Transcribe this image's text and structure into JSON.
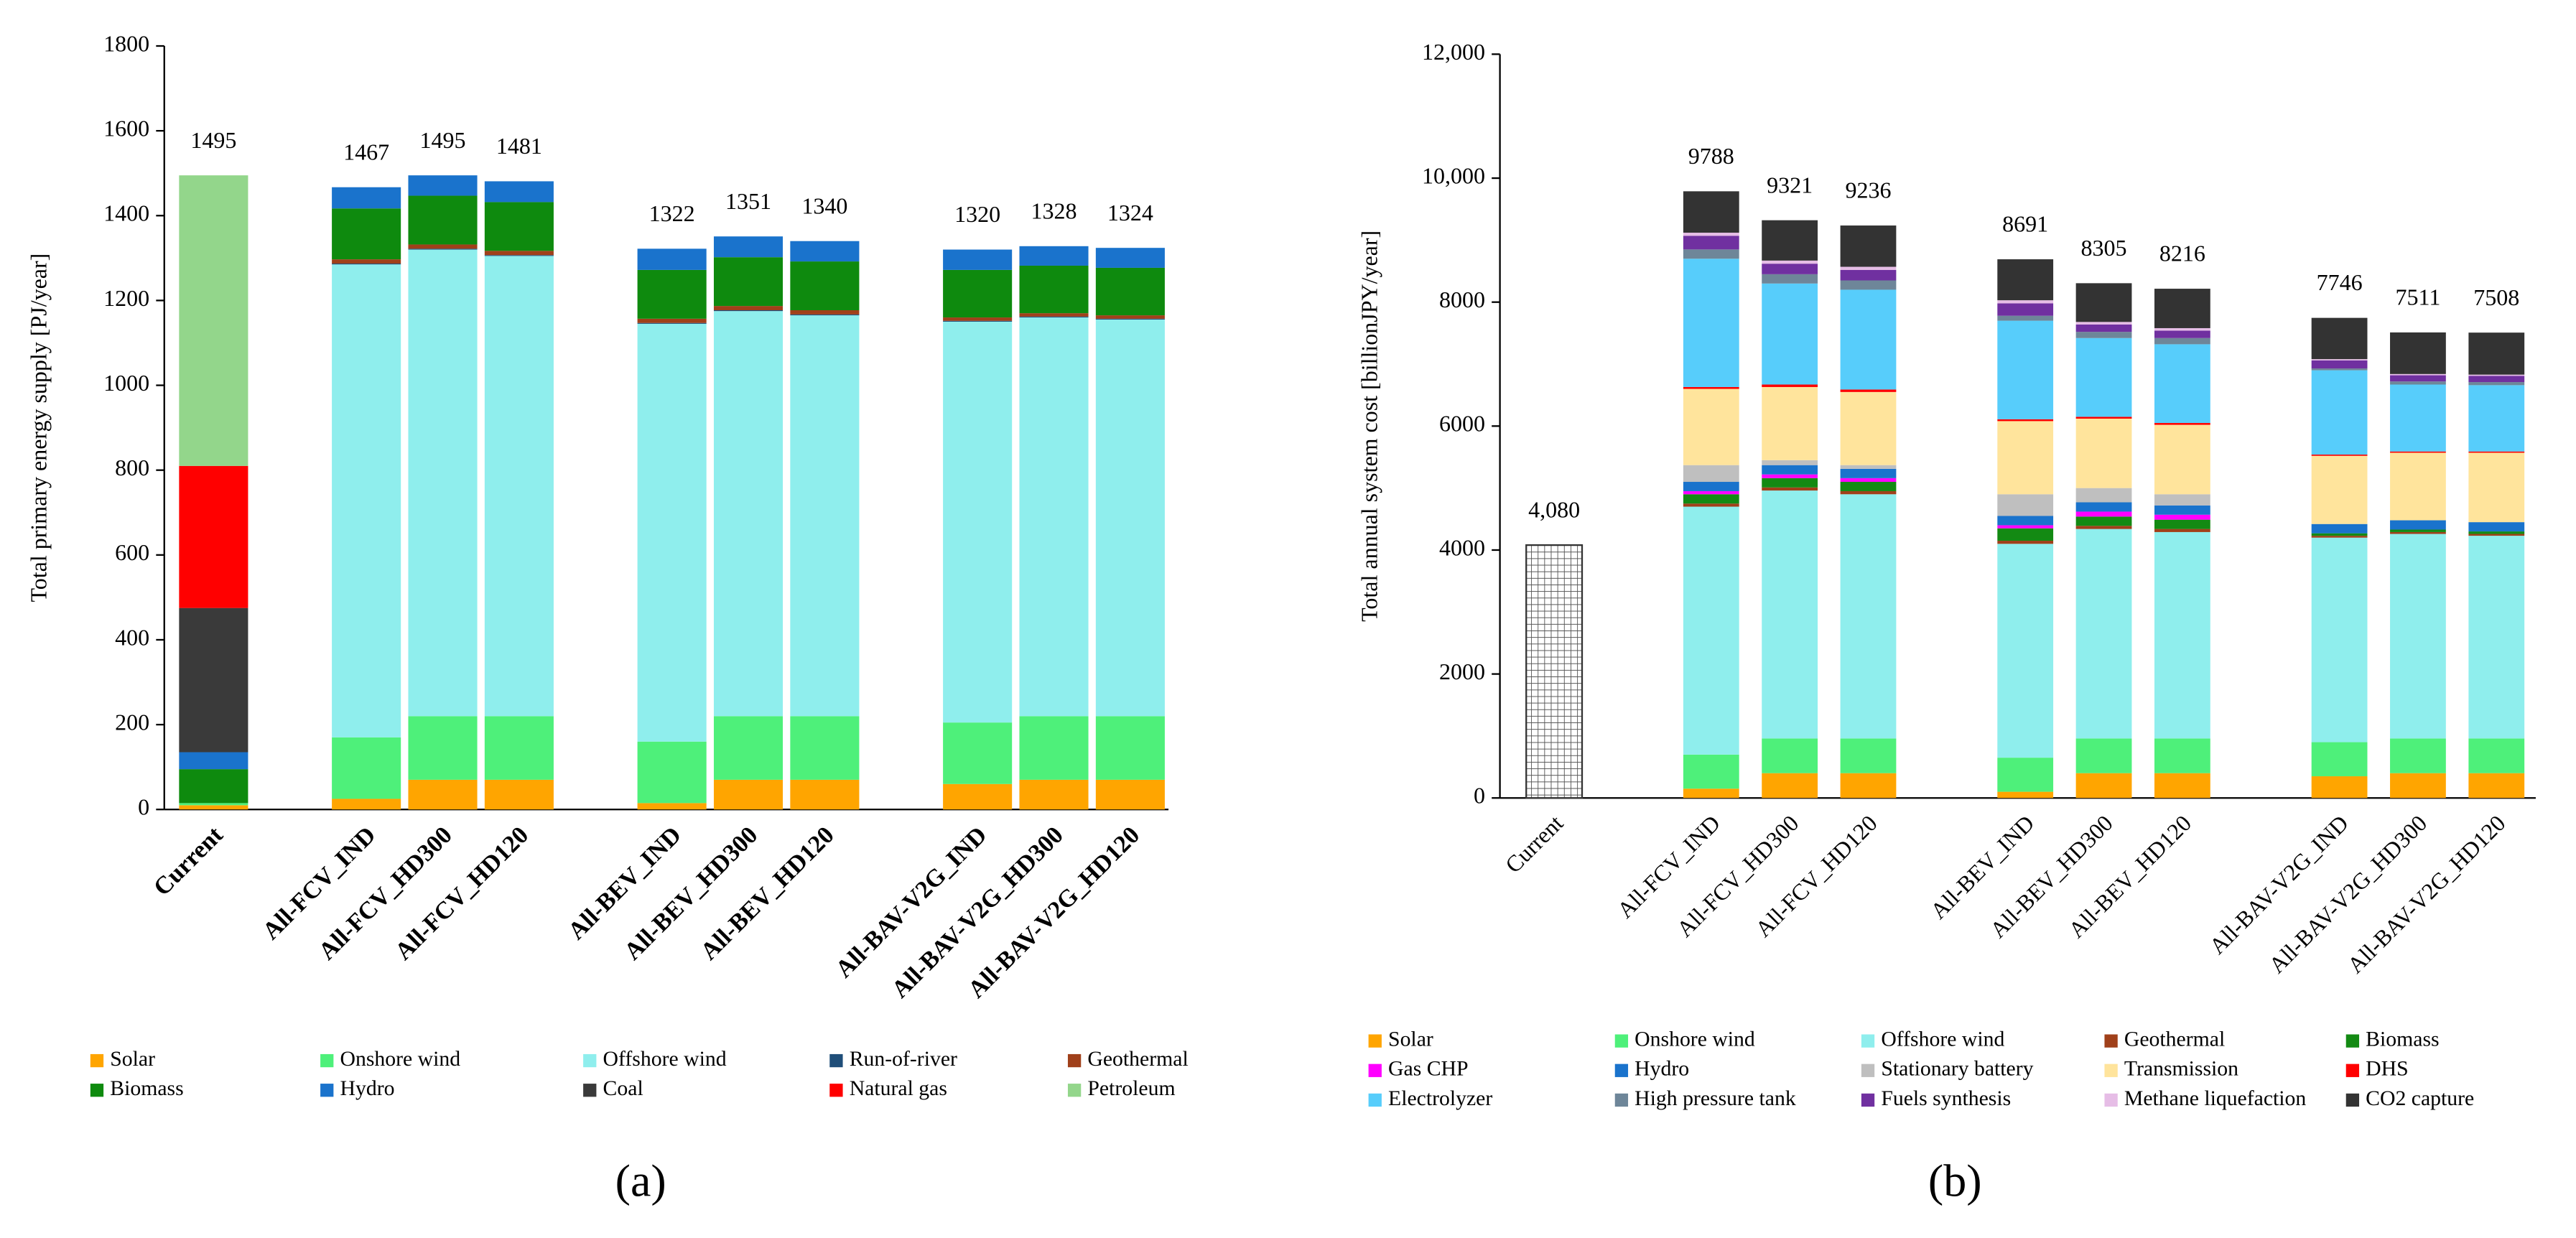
{
  "chart_data": [
    {
      "type": "stacked_bar",
      "panel_label": "(a)",
      "y_label": "Total primary energy supply [PJ/year]",
      "categories": [
        "Current",
        null,
        "All-FCV_IND",
        "All-FCV_HD300",
        "All-FCV_HD120",
        null,
        "All-BEV_IND",
        "All-BEV_HD300",
        "All-BEV_HD120",
        null,
        "All-BAV-V2G_IND",
        "All-BAV-V2G_HD300",
        "All-BAV-V2G_HD120"
      ],
      "ylim": [
        0,
        1800
      ],
      "yticks": [
        0,
        200,
        400,
        600,
        800,
        1000,
        1200,
        1400,
        1600,
        1800
      ],
      "totals": {
        "values": [
          1495,
          null,
          1467,
          1495,
          1481,
          null,
          1322,
          1351,
          1340,
          null,
          1320,
          1328,
          1324
        ]
      },
      "series": [
        {
          "name": "Solar",
          "color": "#ffa500",
          "values": [
            10,
            null,
            25,
            70,
            70,
            null,
            15,
            70,
            70,
            null,
            60,
            70,
            70
          ]
        },
        {
          "name": "Onshore wind",
          "color": "#4ef07a",
          "values": [
            5,
            null,
            145,
            150,
            150,
            null,
            145,
            150,
            150,
            null,
            145,
            150,
            150
          ]
        },
        {
          "name": "Offshore wind",
          "color": "#8feeed",
          "values": [
            0,
            null,
            1115,
            1100,
            1085,
            null,
            985,
            955,
            945,
            null,
            945,
            940,
            935
          ]
        },
        {
          "name": "Run-of-river",
          "color": "#1f4e79",
          "values": [
            0,
            null,
            2,
            2,
            2,
            null,
            2,
            2,
            2,
            null,
            2,
            2,
            2
          ]
        },
        {
          "name": "Geothermal",
          "color": "#a0401a",
          "values": [
            0,
            null,
            10,
            10,
            10,
            null,
            10,
            10,
            10,
            null,
            8,
            8,
            8
          ]
        },
        {
          "name": "Biomass",
          "color": "#0e8a0e",
          "values": [
            80,
            null,
            120,
            115,
            115,
            null,
            115,
            115,
            115,
            null,
            112,
            112,
            112
          ]
        },
        {
          "name": "Hydro",
          "color": "#1a73cc",
          "values": [
            40,
            null,
            50,
            48,
            49,
            null,
            50,
            49,
            48,
            null,
            48,
            46,
            47
          ]
        },
        {
          "name": "Coal",
          "color": "#3a3a3a",
          "values": [
            340,
            null,
            0,
            0,
            0,
            null,
            0,
            0,
            0,
            null,
            0,
            0,
            0
          ]
        },
        {
          "name": "Natural gas",
          "color": "#ff0000",
          "values": [
            335,
            null,
            0,
            0,
            0,
            null,
            0,
            0,
            0,
            null,
            0,
            0,
            0
          ]
        },
        {
          "name": "Petroleum",
          "color": "#93d68b",
          "values": [
            685,
            null,
            0,
            0,
            0,
            null,
            0,
            0,
            0,
            null,
            0,
            0,
            0
          ]
        }
      ]
    },
    {
      "type": "stacked_bar",
      "panel_label": "(b)",
      "y_label": "Total annual system cost [billionJPY/year]",
      "categories": [
        "Current",
        null,
        "All-FCV_IND",
        "All-FCV_HD300",
        "All-FCV_HD120",
        null,
        "All-BEV_IND",
        "All-BEV_HD300",
        "All-BEV_HD120",
        null,
        "All-BAV-V2G_IND",
        "All-BAV-V2G_HD300",
        "All-BAV-V2G_HD120"
      ],
      "ylim": [
        0,
        12000
      ],
      "yticks": [
        0,
        2000,
        4000,
        6000,
        8000,
        {
          "value": 10000,
          "label": "10,000"
        },
        {
          "value": 12000,
          "label": "12,000"
        }
      ],
      "totals": {
        "values": [
          4080,
          null,
          9788,
          9321,
          9236,
          null,
          8691,
          8305,
          8216,
          null,
          7746,
          7511,
          7508
        ],
        "value_labels": [
          "4,080",
          null,
          "9788",
          "9321",
          "9236",
          null,
          "8691",
          "8305",
          "8216",
          null,
          "7746",
          "7511",
          "7508"
        ]
      },
      "series": [
        {
          "name": "Solar",
          "color": "#ffa500",
          "values": [
            null,
            null,
            150,
            400,
            400,
            null,
            100,
            400,
            400,
            null,
            350,
            400,
            400
          ]
        },
        {
          "name": "Onshore wind",
          "color": "#4ef07a",
          "values": [
            null,
            null,
            550,
            560,
            560,
            null,
            550,
            560,
            560,
            null,
            550,
            560,
            560
          ]
        },
        {
          "name": "Offshore wind",
          "color": "#8feeed",
          "values": [
            null,
            null,
            4000,
            4000,
            3940,
            null,
            3450,
            3380,
            3330,
            null,
            3300,
            3300,
            3270
          ]
        },
        {
          "name": "Geothermal",
          "color": "#a0401a",
          "values": [
            null,
            null,
            50,
            50,
            50,
            null,
            50,
            50,
            50,
            null,
            30,
            30,
            30
          ]
        },
        {
          "name": "Biomass",
          "color": "#138a13",
          "values": [
            null,
            null,
            150,
            150,
            150,
            null,
            200,
            150,
            150,
            null,
            40,
            40,
            40
          ]
        },
        {
          "name": "Gas CHP",
          "color": "#ff00ff",
          "values": [
            null,
            null,
            50,
            60,
            60,
            null,
            50,
            80,
            80,
            null,
            0,
            0,
            0
          ]
        },
        {
          "name": "Hydro",
          "color": "#1a73cc",
          "values": [
            null,
            null,
            150,
            150,
            150,
            null,
            150,
            150,
            150,
            null,
            150,
            150,
            150
          ]
        },
        {
          "name": "Stationary battery",
          "color": "#bfbfbf",
          "values": [
            null,
            null,
            270,
            80,
            60,
            null,
            350,
            230,
            180,
            null,
            0,
            0,
            0
          ]
        },
        {
          "name": "Transmission",
          "color": "#ffe49c",
          "values": [
            null,
            null,
            1230,
            1180,
            1180,
            null,
            1180,
            1120,
            1120,
            null,
            1100,
            1090,
            1120
          ]
        },
        {
          "name": "DHS",
          "color": "#ff0000",
          "values": [
            null,
            null,
            30,
            40,
            40,
            null,
            30,
            30,
            30,
            null,
            20,
            20,
            20
          ]
        },
        {
          "name": "Electrolyzer",
          "color": "#57cdfb",
          "values": [
            null,
            null,
            2070,
            1630,
            1610,
            null,
            1590,
            1270,
            1270,
            null,
            1360,
            1080,
            1070
          ]
        },
        {
          "name": "High pressure tank",
          "color": "#6e8699",
          "values": [
            null,
            null,
            150,
            150,
            150,
            null,
            80,
            100,
            100,
            null,
            30,
            50,
            50
          ]
        },
        {
          "name": "Fuels synthesis",
          "color": "#7030a0",
          "values": [
            null,
            null,
            220,
            170,
            170,
            null,
            200,
            120,
            120,
            null,
            130,
            100,
            100
          ]
        },
        {
          "name": "Methane liquefaction",
          "color": "#e6bde6",
          "values": [
            null,
            null,
            50,
            50,
            50,
            null,
            50,
            40,
            40,
            null,
            20,
            20,
            20
          ]
        },
        {
          "name": "CO2 capture",
          "color": "#333333",
          "values": [
            null,
            null,
            668,
            651,
            666,
            null,
            661,
            625,
            636,
            null,
            666,
            671,
            678
          ]
        }
      ]
    }
  ]
}
